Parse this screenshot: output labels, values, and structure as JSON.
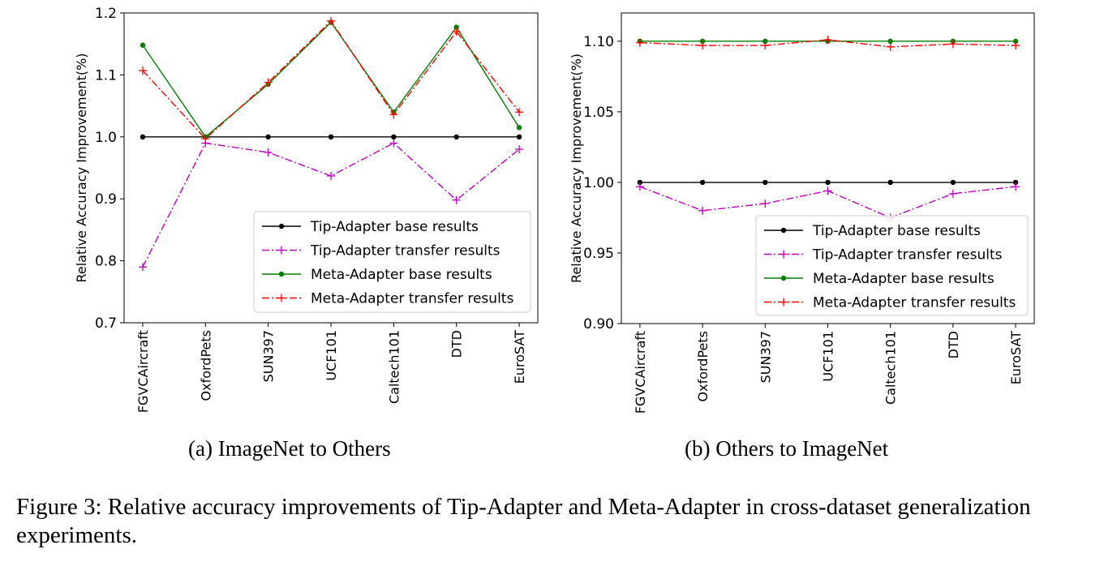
{
  "chart_data": [
    {
      "type": "line",
      "subcaption_label": "(a)",
      "subcaption": "ImageNet to Others",
      "ylabel": "Relative Accuracy Improvement(%)",
      "xlabel": "",
      "categories": [
        "FGVCAircraft",
        "OxfordPets",
        "SUN397",
        "UCF101",
        "Caltech101",
        "DTD",
        "EuroSAT"
      ],
      "ylim": [
        0.7,
        1.2
      ],
      "yticks": [
        "0.7",
        "0.8",
        "0.9",
        "1.0",
        "1.1",
        "1.2"
      ],
      "grid": false,
      "legend_position": "bottom-right",
      "series": [
        {
          "name": "Tip-Adapter base results",
          "color": "#000000",
          "marker": "dot",
          "dash": "solid",
          "values": [
            1.0,
            1.0,
            1.0,
            1.0,
            1.0,
            1.0,
            1.0
          ]
        },
        {
          "name": "Tip-Adapter transfer results",
          "color": "#bf00bf",
          "marker": "plus",
          "dash": "dashdot",
          "values": [
            0.79,
            0.99,
            0.975,
            0.937,
            0.99,
            0.898,
            0.98
          ]
        },
        {
          "name": "Meta-Adapter base results",
          "color": "#008000",
          "marker": "dot",
          "dash": "solid",
          "values": [
            1.148,
            1.0,
            1.085,
            1.185,
            1.04,
            1.177,
            1.015
          ]
        },
        {
          "name": "Meta-Adapter transfer results",
          "color": "#ff0000",
          "marker": "plus",
          "dash": "dashdot",
          "values": [
            1.107,
            0.997,
            1.088,
            1.187,
            1.036,
            1.17,
            1.04
          ]
        }
      ]
    },
    {
      "type": "line",
      "subcaption_label": "(b)",
      "subcaption": "Others to ImageNet",
      "ylabel": "Relative Accuracy Improvement(%)",
      "xlabel": "",
      "categories": [
        "FGVCAircraft",
        "OxfordPets",
        "SUN397",
        "UCF101",
        "Caltech101",
        "DTD",
        "EuroSAT"
      ],
      "ylim": [
        0.9,
        1.12
      ],
      "yticks": [
        "0.90",
        "0.95",
        "1.00",
        "1.05",
        "1.10"
      ],
      "grid": false,
      "legend_position": "bottom-right",
      "series": [
        {
          "name": "Tip-Adapter base results",
          "color": "#000000",
          "marker": "dot",
          "dash": "solid",
          "values": [
            1.0,
            1.0,
            1.0,
            1.0,
            1.0,
            1.0,
            1.0
          ]
        },
        {
          "name": "Tip-Adapter transfer results",
          "color": "#bf00bf",
          "marker": "plus",
          "dash": "dashdot",
          "values": [
            0.997,
            0.98,
            0.985,
            0.994,
            0.975,
            0.992,
            0.997
          ]
        },
        {
          "name": "Meta-Adapter base results",
          "color": "#008000",
          "marker": "dot",
          "dash": "solid",
          "values": [
            1.1,
            1.1,
            1.1,
            1.1,
            1.1,
            1.1,
            1.1
          ]
        },
        {
          "name": "Meta-Adapter transfer results",
          "color": "#ff0000",
          "marker": "plus",
          "dash": "dashdot",
          "values": [
            1.099,
            1.097,
            1.097,
            1.101,
            1.096,
            1.098,
            1.097
          ]
        }
      ]
    }
  ],
  "figure_caption": "Figure 3: Relative accuracy improvements of Tip-Adapter and Meta-Adapter in cross-dataset generalization experiments."
}
